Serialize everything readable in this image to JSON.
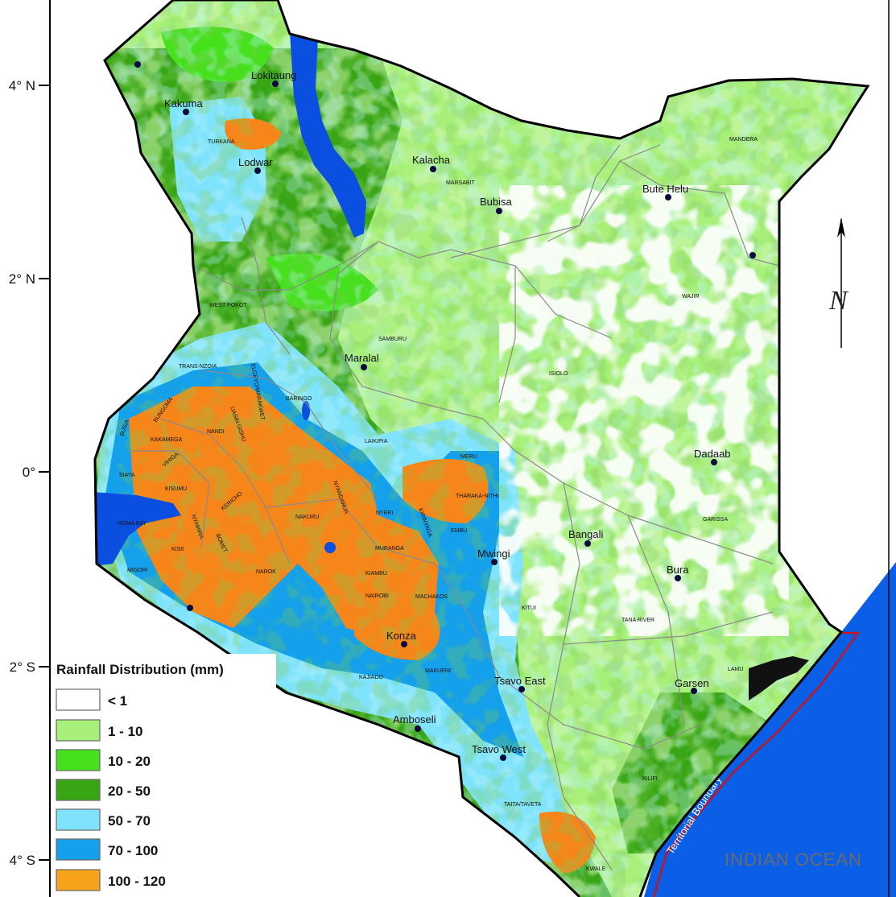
{
  "ocean_label": "INDIAN OCEAN",
  "boundary_label": "Territorial Boundary",
  "north_label": "N",
  "latitude_labels": [
    "4° N",
    "2° N",
    "0°",
    "2° S",
    "4° S"
  ],
  "legend": {
    "title": "Rainfall Distribution (mm)",
    "items": [
      {
        "label": "< 1",
        "color": "#ffffff"
      },
      {
        "label": "1 - 10",
        "color": "#a8f07a"
      },
      {
        "label": "10 - 20",
        "color": "#46e01c"
      },
      {
        "label": "20 - 50",
        "color": "#38a514"
      },
      {
        "label": "50 - 70",
        "color": "#7fe3fb"
      },
      {
        "label": "70 - 100",
        "color": "#14a0ea"
      },
      {
        "label": "100 - 120",
        "color": "#f7a21b"
      }
    ]
  },
  "colors": {
    "ocean": "#0b5ee6",
    "lake": "#0a4fe0",
    "high_rain": "#f7861a",
    "boundary_line": "#c4161c",
    "border": "#000000",
    "county_lines": "#8a8a8a"
  },
  "cities": [
    "Lokitaung",
    "Kakuma",
    "Lodwar",
    "Kalacha",
    "Bubisa",
    "Bute Helu",
    "Maralal",
    "Dadaab",
    "Bangali",
    "Mwingi",
    "Bura",
    "Konza",
    "Tsavo East",
    "Garsen",
    "Amboseli",
    "Tsavo West"
  ],
  "counties": [
    "TURKANA",
    "MARSABIT",
    "MANDERA",
    "WAJIR",
    "WEST POKOT",
    "SAMBURU",
    "ISIOLO",
    "TRANS-NZOIA",
    "ELGEYO/MARAKWET",
    "BARINGO",
    "BUNGOMA",
    "UASIN GISHU",
    "BUSIA",
    "KAKAMEGA",
    "NANDI",
    "LAIKIPIA",
    "MERU",
    "VIHIGA",
    "SIAYA",
    "KISUMU",
    "KERICHO",
    "NYANDARUA",
    "THARAKA-NITHI",
    "NAKURU",
    "NYERI",
    "KIRINYAGA",
    "GARISSA",
    "HOMA BAY",
    "NYAMIRA",
    "BOMET",
    "EMBU",
    "KISII",
    "MURANGA",
    "MIGORI",
    "KIAMBU",
    "NAROK",
    "NAIROBI",
    "MACHAKOS",
    "KITUI",
    "TANA RIVER",
    "KAJIADO",
    "MAKUENI",
    "LAMU",
    "KILIFI",
    "TAITA/TAVETA",
    "KWALE"
  ]
}
